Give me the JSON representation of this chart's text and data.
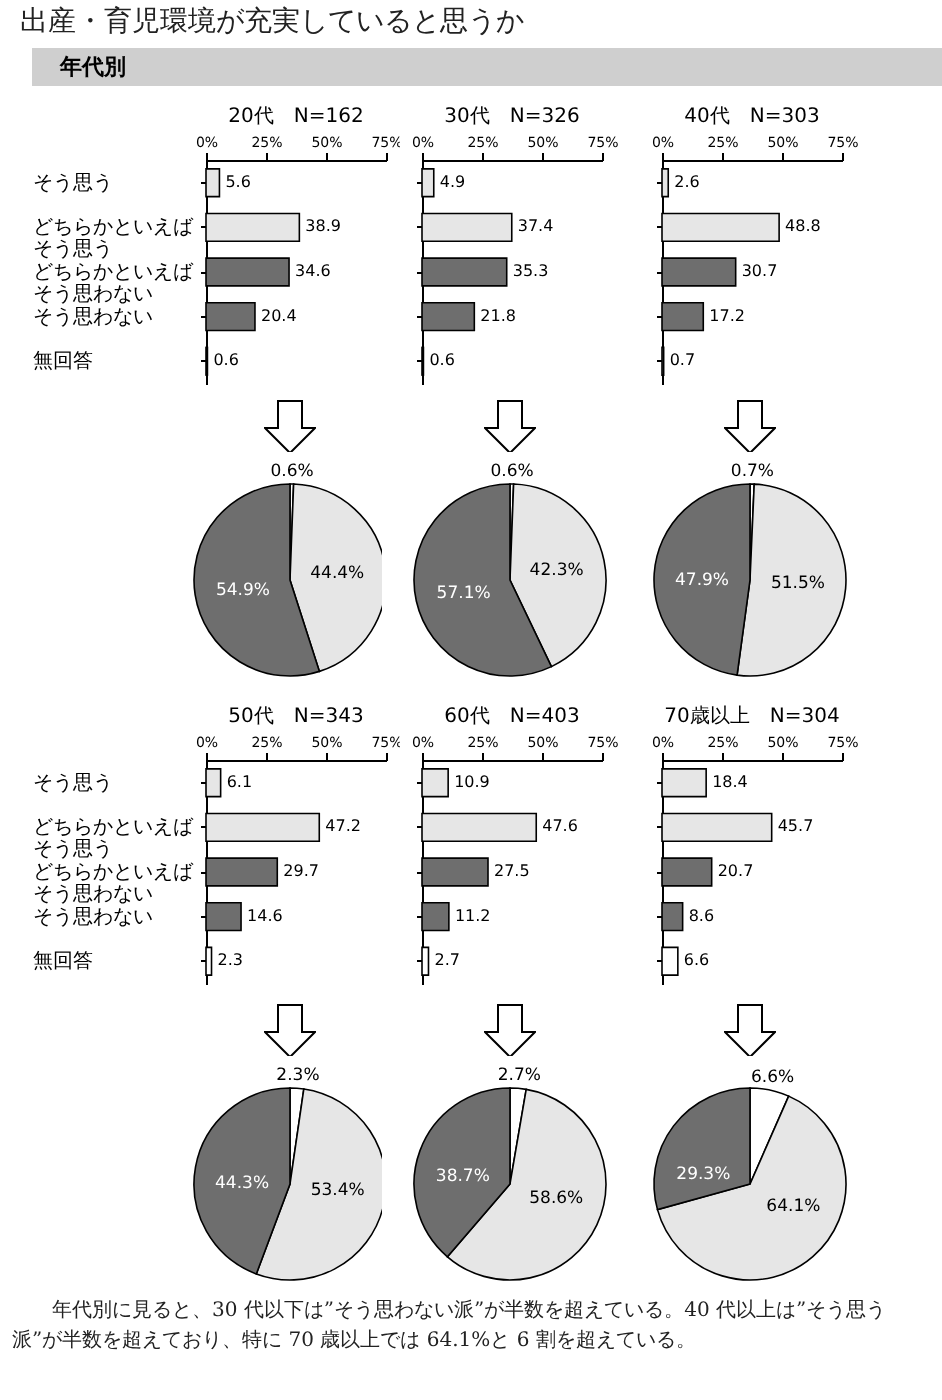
{
  "chart_data": [
    {
      "type": "other",
      "title": "出産・育児環境が充実していると思うか",
      "subtitle": "年代別"
    },
    {
      "type": "bar",
      "orientation": "horizontal",
      "title": "20代　N=162",
      "categories": [
        "そう思う",
        "どちらかといえばそう思う",
        "どちらかといえばそう思わない",
        "そう思わない",
        "無回答"
      ],
      "values": [
        5.6,
        38.9,
        34.6,
        20.4,
        0.6
      ],
      "colors": [
        "#e6e6e6",
        "#e6e6e6",
        "#6e6e6e",
        "#6e6e6e",
        "#ffffff"
      ],
      "xlim": [
        0,
        75
      ],
      "xticks": [
        {
          "value": 0,
          "label": "0%"
        },
        {
          "value": 25,
          "label": "25%"
        },
        {
          "value": 50,
          "label": "50%"
        },
        {
          "value": 75,
          "label": "75%"
        }
      ],
      "data_labels": true
    },
    {
      "type": "bar",
      "orientation": "horizontal",
      "title": "30代　N=326",
      "categories": [
        "そう思う",
        "どちらかといえばそう思う",
        "どちらかといえばそう思わない",
        "そう思わない",
        "無回答"
      ],
      "values": [
        4.9,
        37.4,
        35.3,
        21.8,
        0.6
      ],
      "colors": [
        "#e6e6e6",
        "#e6e6e6",
        "#6e6e6e",
        "#6e6e6e",
        "#ffffff"
      ],
      "xlim": [
        0,
        75
      ],
      "xticks": [
        {
          "value": 0,
          "label": "0%"
        },
        {
          "value": 25,
          "label": "25%"
        },
        {
          "value": 50,
          "label": "50%"
        },
        {
          "value": 75,
          "label": "75%"
        }
      ],
      "data_labels": true,
      "tick_labels": "x"
    },
    {
      "type": "bar",
      "orientation": "horizontal",
      "title": "40代　N=303",
      "categories": [
        "そう思う",
        "どちらかといえばそう思う",
        "どちらかといえばそう思わない",
        "そう思わない",
        "無回答"
      ],
      "values": [
        2.6,
        48.8,
        30.7,
        17.2,
        0.7
      ],
      "colors": [
        "#e6e6e6",
        "#e6e6e6",
        "#6e6e6e",
        "#6e6e6e",
        "#ffffff"
      ],
      "xlim": [
        0,
        75
      ],
      "xticks": [
        {
          "value": 0,
          "label": "0%"
        },
        {
          "value": 25,
          "label": "25%"
        },
        {
          "value": 50,
          "label": "50%"
        },
        {
          "value": 75,
          "label": "75%"
        }
      ],
      "data_labels": true,
      "tick_labels": "x"
    },
    {
      "type": "pie",
      "categories": [
        null,
        null,
        null
      ],
      "values": [
        0.6,
        44.4,
        54.9
      ],
      "colors": [
        "#ffffff",
        "#e6e6e6",
        "#6e6e6e"
      ],
      "value_labels": [
        "0.6%",
        "44.4%",
        "54.9%"
      ]
    },
    {
      "type": "pie",
      "categories": [
        null,
        null,
        null
      ],
      "values": [
        0.6,
        42.3,
        57.1
      ],
      "colors": [
        "#ffffff",
        "#e6e6e6",
        "#6e6e6e"
      ],
      "value_labels": [
        "0.6%",
        "42.3%",
        "57.1%"
      ]
    },
    {
      "type": "pie",
      "categories": [
        null,
        null,
        null
      ],
      "values": [
        0.7,
        51.5,
        47.9
      ],
      "colors": [
        "#ffffff",
        "#e6e6e6",
        "#6e6e6e"
      ],
      "value_labels": [
        "0.7%",
        "51.5%",
        "47.9%"
      ]
    },
    {
      "type": "bar",
      "orientation": "horizontal",
      "title": "50代　N=343",
      "categories": [
        "そう思う",
        "どちらかといえばそう思う",
        "どちらかといえばそう思わない",
        "そう思わない",
        "無回答"
      ],
      "values": [
        6.1,
        47.2,
        29.7,
        14.6,
        2.3
      ],
      "colors": [
        "#e6e6e6",
        "#e6e6e6",
        "#6e6e6e",
        "#6e6e6e",
        "#ffffff"
      ],
      "xlim": [
        0,
        75
      ],
      "xticks": [
        {
          "value": 0,
          "label": "0%"
        },
        {
          "value": 25,
          "label": "25%"
        },
        {
          "value": 50,
          "label": "50%"
        },
        {
          "value": 75,
          "label": "75%"
        }
      ],
      "data_labels": true
    },
    {
      "type": "bar",
      "orientation": "horizontal",
      "title": "60代　N=403",
      "categories": [
        "そう思う",
        "どちらかといえばそう思う",
        "どちらかといえばそう思わない",
        "そう思わない",
        "無回答"
      ],
      "values": [
        10.9,
        47.6,
        27.5,
        11.2,
        2.7
      ],
      "colors": [
        "#e6e6e6",
        "#e6e6e6",
        "#6e6e6e",
        "#6e6e6e",
        "#ffffff"
      ],
      "xlim": [
        0,
        75
      ],
      "xticks": [
        {
          "value": 0,
          "label": "0%"
        },
        {
          "value": 25,
          "label": "25%"
        },
        {
          "value": 50,
          "label": "50%"
        },
        {
          "value": 75,
          "label": "75%"
        }
      ],
      "data_labels": true,
      "tick_labels": "x"
    },
    {
      "type": "bar",
      "orientation": "horizontal",
      "title": "70歳以上　N=304",
      "categories": [
        "そう思う",
        "どちらかといえばそう思う",
        "どちらかといえばそう思わない",
        "そう思わない",
        "無回答"
      ],
      "values": [
        18.4,
        45.7,
        20.7,
        8.6,
        6.6
      ],
      "colors": [
        "#e6e6e6",
        "#e6e6e6",
        "#6e6e6e",
        "#6e6e6e",
        "#ffffff"
      ],
      "xlim": [
        0,
        75
      ],
      "xticks": [
        {
          "value": 0,
          "label": "0%"
        },
        {
          "value": 25,
          "label": "25%"
        },
        {
          "value": 50,
          "label": "50%"
        },
        {
          "value": 75,
          "label": "75%"
        }
      ],
      "data_labels": true,
      "tick_labels": "x"
    },
    {
      "type": "pie",
      "categories": [
        null,
        null,
        null
      ],
      "values": [
        2.3,
        53.4,
        44.3
      ],
      "colors": [
        "#ffffff",
        "#e6e6e6",
        "#6e6e6e"
      ],
      "value_labels": [
        "2.3%",
        "53.4%",
        "44.3%"
      ]
    },
    {
      "type": "pie",
      "categories": [
        null,
        null,
        null
      ],
      "values": [
        2.7,
        58.6,
        38.7
      ],
      "colors": [
        "#ffffff",
        "#e6e6e6",
        "#6e6e6e"
      ],
      "value_labels": [
        "2.7%",
        "58.6%",
        "38.7%"
      ]
    },
    {
      "type": "pie",
      "categories": [
        null,
        null,
        null
      ],
      "values": [
        6.6,
        64.1,
        29.3
      ],
      "colors": [
        "#ffffff",
        "#e6e6e6",
        "#6e6e6e"
      ],
      "value_labels": [
        "6.6%",
        "64.1%",
        "29.3%"
      ]
    },
    {
      "type": "other",
      "annotations": [
        "年代別に見ると、30 代以下は”そう思わない派”が半数を超えている。40 代以上は”そう思う派”が半数を超えており、特に 70 歳以上では 64.1%と 6 割を超えている。"
      ]
    }
  ]
}
